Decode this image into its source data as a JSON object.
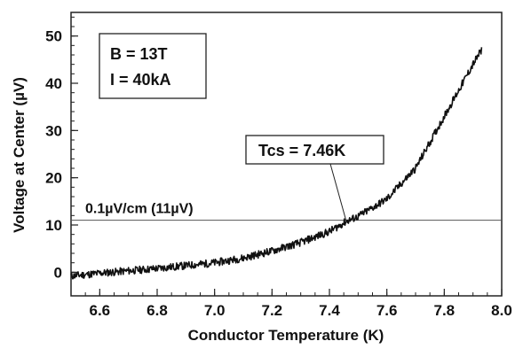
{
  "chart_data": {
    "type": "line",
    "xlabel": "Conductor Temperature (K)",
    "ylabel": "Voltage at Center (µV)",
    "xlim": [
      6.5,
      8.0
    ],
    "ylim": [
      -5,
      55
    ],
    "x_ticks": [
      6.6,
      6.8,
      7.0,
      7.2,
      7.4,
      7.6,
      7.8,
      8.0
    ],
    "x_tick_labels": [
      "6.6",
      "6.8",
      "7.0",
      "7.2",
      "7.4",
      "7.6",
      "7.8",
      "8.0"
    ],
    "y_ticks": [
      0,
      10,
      20,
      30,
      40,
      50
    ],
    "y_tick_labels": [
      "0",
      "10",
      "20",
      "30",
      "40",
      "50"
    ],
    "grid": false,
    "series": [
      {
        "x": [
          6.5,
          6.6,
          6.7,
          6.8,
          6.9,
          7.0,
          7.1,
          7.2,
          7.3,
          7.4,
          7.46,
          7.5,
          7.6,
          7.7,
          7.8,
          7.85,
          7.9,
          7.93
        ],
        "values": [
          -0.8,
          -0.2,
          0.3,
          0.8,
          1.4,
          2.0,
          3.0,
          4.5,
          6.3,
          8.6,
          10.8,
          11.8,
          15.5,
          22.0,
          33.0,
          38.5,
          44.0,
          47.0
        ]
      }
    ],
    "reference_line": {
      "y": 11,
      "label": "0.1µV/cm (11µV)"
    },
    "annotations": [
      {
        "text": "Tcs = 7.46K",
        "points_to": {
          "x": 7.46,
          "y": 10.5
        }
      }
    ],
    "info_box": {
      "lines": [
        "B = 13T",
        "I = 40kA"
      ]
    },
    "colors": {
      "curve": "#111111",
      "axes": "#222222",
      "reference_line": "#555555"
    }
  }
}
